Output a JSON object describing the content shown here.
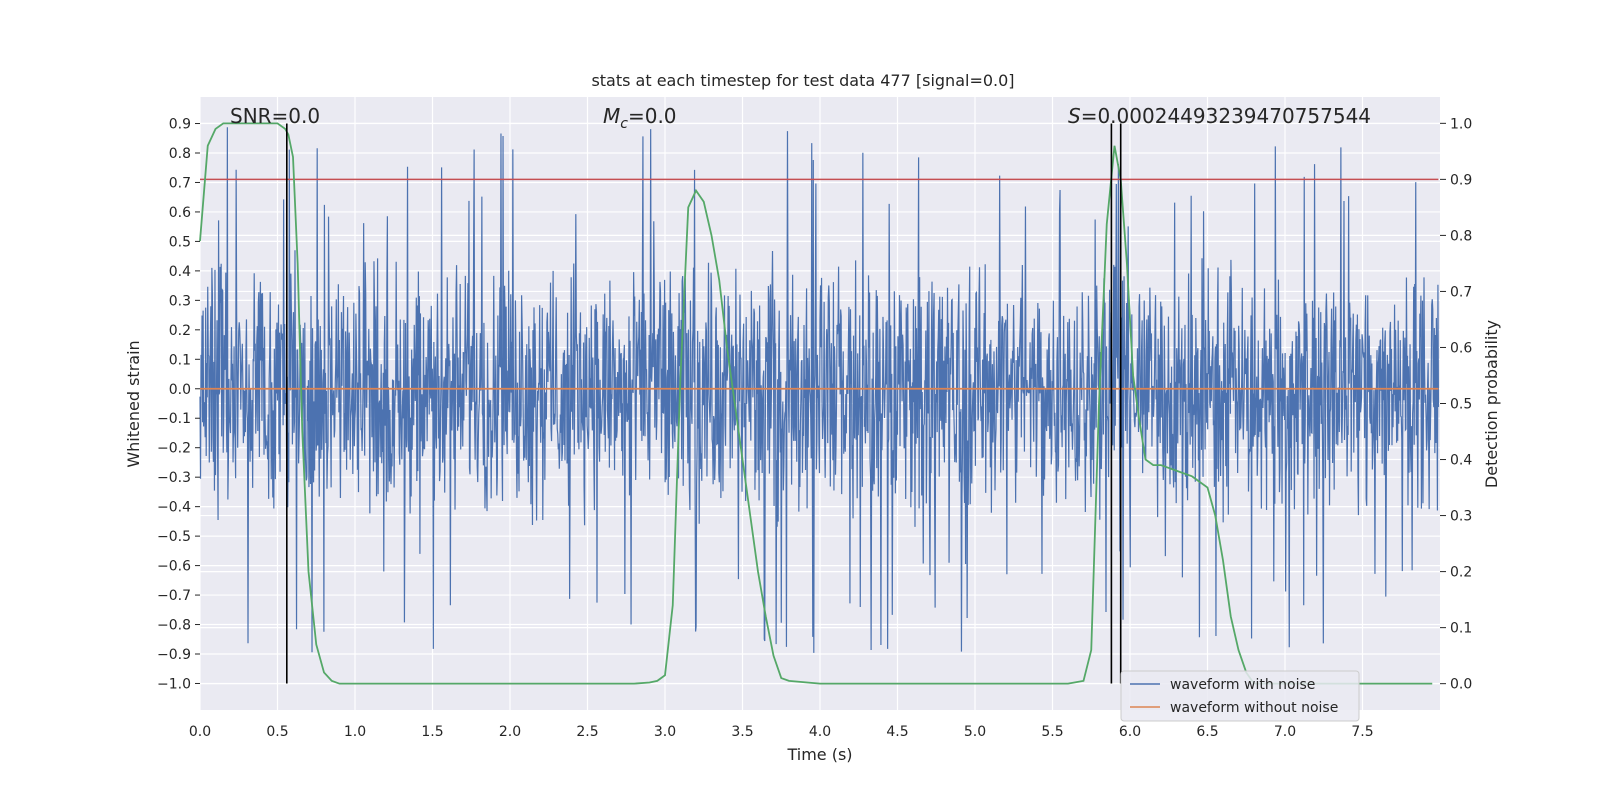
{
  "chart_data": {
    "type": "line",
    "title": "stats at each timestep for test data 477 [signal=0.0]",
    "xlabel": "Time (s)",
    "ylabel": "Whitened strain",
    "y2label": "Detection probability",
    "xlim": [
      0.0,
      8.0
    ],
    "ylim": [
      -1.09,
      0.99
    ],
    "y2lim": [
      -0.047,
      1.047
    ],
    "x_ticks": [
      0.0,
      0.5,
      1.0,
      1.5,
      2.0,
      2.5,
      3.0,
      3.5,
      4.0,
      4.5,
      5.0,
      5.5,
      6.0,
      6.5,
      7.0,
      7.5
    ],
    "x_tick_labels": [
      "0.0",
      "0.5",
      "1.0",
      "1.5",
      "2.0",
      "2.5",
      "3.0",
      "3.5",
      "4.0",
      "4.5",
      "5.0",
      "5.5",
      "6.0",
      "6.5",
      "7.0",
      "7.5"
    ],
    "y_ticks": [
      0.9,
      0.8,
      0.7,
      0.6,
      0.5,
      0.4,
      0.3,
      0.2,
      0.1,
      0.0,
      -0.1,
      -0.2,
      -0.3,
      -0.4,
      -0.5,
      -0.6,
      -0.7,
      -0.8,
      -0.9,
      -1.0
    ],
    "y_tick_labels": [
      "0.9",
      "0.8",
      "0.7",
      "0.6",
      "0.5",
      "0.4",
      "0.3",
      "0.2",
      "0.1",
      "0.0",
      "−0.1",
      "−0.2",
      "−0.3",
      "−0.4",
      "−0.5",
      "−0.6",
      "−0.7",
      "−0.8",
      "−0.9",
      "−1.0"
    ],
    "y2_ticks": [
      1.0,
      0.9,
      0.8,
      0.7,
      0.6,
      0.5,
      0.4,
      0.3,
      0.2,
      0.1,
      0.0
    ],
    "y2_tick_labels": [
      "1.0",
      "0.9",
      "0.8",
      "0.7",
      "0.6",
      "0.5",
      "0.4",
      "0.3",
      "0.2",
      "0.1",
      "0.0"
    ],
    "grid": true,
    "annotations": {
      "snr": "SNR=0.0",
      "mc_symbol": "M",
      "mc_sub": "c",
      "mc_rest": "=0.0",
      "s_symbol": "S",
      "s_rest": "=0.00024493239470757544"
    },
    "legend": {
      "placement": "lower-right",
      "entries": [
        "waveform with noise",
        "waveform without noise"
      ]
    },
    "series": [
      {
        "name": "waveform with noise",
        "color": "#4c72b0",
        "note": "dense noise, amplitude envelope roughly ±0.5, sporadic spikes to about ±0.9",
        "x_range": [
          0.0,
          7.99
        ],
        "y_envelope": [
          -0.95,
          0.9
        ]
      },
      {
        "name": "waveform without noise",
        "color": "#dd8452",
        "x": [
          0.0,
          7.99
        ],
        "y": [
          0.0,
          0.0
        ]
      },
      {
        "name": "",
        "color": "#55a868",
        "axis": "right",
        "x": [
          0.0,
          0.05,
          0.1,
          0.15,
          0.2,
          0.3,
          0.4,
          0.5,
          0.55,
          0.57,
          0.6,
          0.63,
          0.66,
          0.7,
          0.75,
          0.8,
          0.85,
          0.9,
          1.0,
          1.5,
          2.0,
          2.5,
          2.8,
          2.9,
          2.95,
          3.0,
          3.05,
          3.1,
          3.15,
          3.2,
          3.25,
          3.3,
          3.35,
          3.4,
          3.45,
          3.5,
          3.55,
          3.6,
          3.65,
          3.7,
          3.75,
          3.8,
          4.0,
          5.0,
          5.6,
          5.7,
          5.75,
          5.8,
          5.85,
          5.9,
          5.94,
          5.98,
          6.02,
          6.06,
          6.1,
          6.15,
          6.2,
          6.25,
          6.3,
          6.4,
          6.5,
          6.55,
          6.6,
          6.65,
          6.7,
          6.75,
          6.8,
          6.85,
          6.9,
          7.0,
          7.5,
          7.95
        ],
        "y": [
          0.79,
          0.96,
          0.99,
          1.0,
          1.0,
          1.0,
          1.0,
          1.0,
          0.99,
          0.98,
          0.94,
          0.75,
          0.45,
          0.2,
          0.07,
          0.02,
          0.005,
          0.0,
          0.0,
          0.0,
          0.0,
          0.0,
          0.0,
          0.002,
          0.005,
          0.015,
          0.14,
          0.55,
          0.85,
          0.88,
          0.86,
          0.8,
          0.72,
          0.6,
          0.5,
          0.4,
          0.3,
          0.2,
          0.12,
          0.05,
          0.01,
          0.005,
          0.0,
          0.0,
          0.0,
          0.005,
          0.06,
          0.5,
          0.82,
          0.96,
          0.9,
          0.75,
          0.55,
          0.47,
          0.4,
          0.39,
          0.39,
          0.385,
          0.38,
          0.37,
          0.35,
          0.3,
          0.22,
          0.12,
          0.06,
          0.02,
          0.0,
          0.0,
          0.0,
          0.0,
          0.0,
          0.0
        ]
      },
      {
        "name": "",
        "color": "#c44e52",
        "axis": "right",
        "x": [
          0.0,
          7.99
        ],
        "y": [
          0.9,
          0.9
        ]
      }
    ],
    "vertical_lines": [
      0.56,
      5.88,
      5.94
    ],
    "vertical_line_ylim": [
      -1.0,
      0.9
    ]
  }
}
